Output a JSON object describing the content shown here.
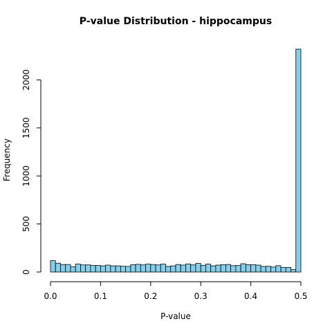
{
  "chart_data": {
    "type": "bar",
    "title": "P-value Distribution - hippocampus",
    "xlabel": "P-value",
    "ylabel": "Frequency",
    "bin_width": 0.01,
    "bin_starts": [
      0.0,
      0.01,
      0.02,
      0.03,
      0.04,
      0.05,
      0.06,
      0.07,
      0.08,
      0.09,
      0.1,
      0.11,
      0.12,
      0.13,
      0.14,
      0.15,
      0.16,
      0.17,
      0.18,
      0.19,
      0.2,
      0.21,
      0.22,
      0.23,
      0.24,
      0.25,
      0.26,
      0.27,
      0.28,
      0.29,
      0.3,
      0.31,
      0.32,
      0.33,
      0.34,
      0.35,
      0.36,
      0.37,
      0.38,
      0.39,
      0.4,
      0.41,
      0.42,
      0.43,
      0.44,
      0.45,
      0.46,
      0.47,
      0.48,
      0.49
    ],
    "values": [
      118,
      92,
      78,
      78,
      54,
      82,
      74,
      74,
      68,
      68,
      64,
      72,
      64,
      64,
      60,
      58,
      76,
      80,
      74,
      82,
      78,
      74,
      82,
      58,
      64,
      78,
      72,
      84,
      74,
      90,
      70,
      82,
      64,
      72,
      76,
      78,
      66,
      68,
      86,
      76,
      76,
      72,
      58,
      60,
      52,
      66,
      48,
      48,
      24,
      2320
    ],
    "xlim": [
      0.0,
      0.5
    ],
    "ylim": [
      0,
      2320
    ],
    "x_ticks": [
      0.0,
      0.1,
      0.2,
      0.3,
      0.4,
      0.5
    ],
    "x_tick_labels": [
      "0.0",
      "0.1",
      "0.2",
      "0.3",
      "0.4",
      "0.5"
    ],
    "y_ticks": [
      0,
      500,
      1000,
      1500,
      2000
    ],
    "y_tick_labels": [
      "0",
      "500",
      "1000",
      "1500",
      "2000"
    ],
    "bar_fill": "#87ceeb",
    "bar_stroke": "#000000",
    "grid": false,
    "legend": "none"
  }
}
